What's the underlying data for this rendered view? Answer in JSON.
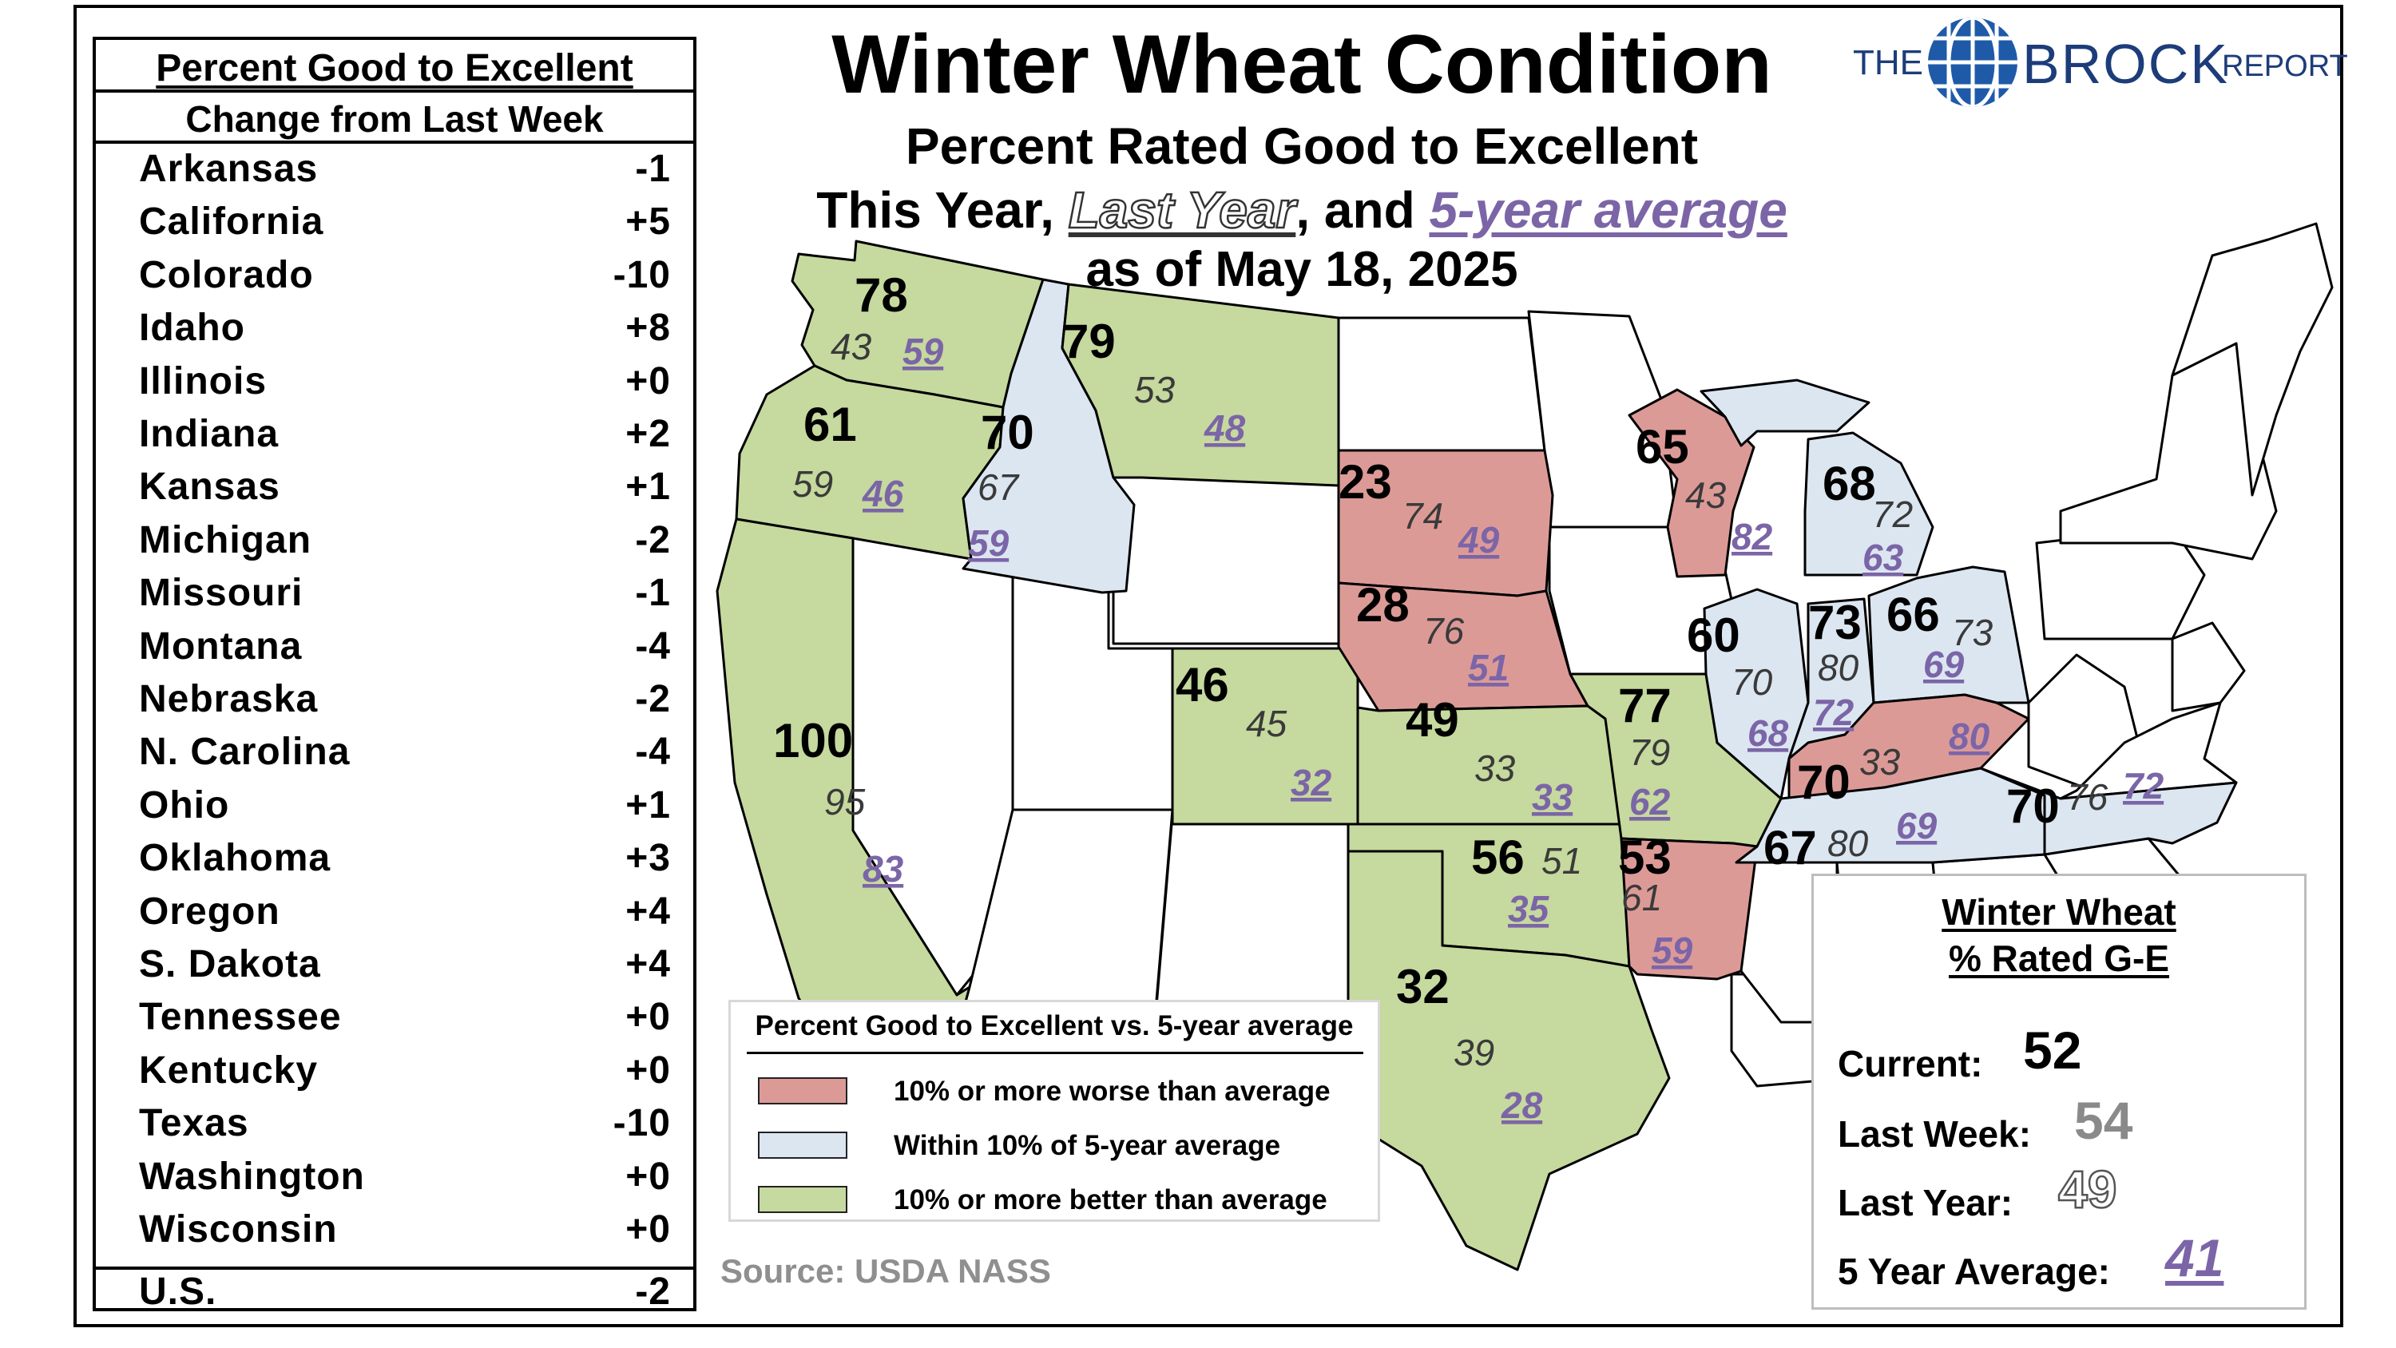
{
  "title": "Winter Wheat Condition",
  "subtitle": "Percent Rated Good to Excellent",
  "subtitle2": {
    "prefix": "This Year, ",
    "last_year": "Last Year",
    "middle": ", and ",
    "five_year": "5-year average"
  },
  "as_of": "as of May 18, 2025",
  "logo": {
    "the": "THE",
    "brock": "BROCK",
    "report": "REPORT"
  },
  "changes": {
    "header1": "Percent Good to Excellent",
    "header2": "Change from Last Week",
    "rows": [
      {
        "state": "Arkansas",
        "change": "-1"
      },
      {
        "state": "California",
        "change": "+5"
      },
      {
        "state": "Colorado",
        "change": "-10"
      },
      {
        "state": "Idaho",
        "change": "+8"
      },
      {
        "state": "Illinois",
        "change": "+0"
      },
      {
        "state": "Indiana",
        "change": "+2"
      },
      {
        "state": "Kansas",
        "change": "+1"
      },
      {
        "state": "Michigan",
        "change": "-2"
      },
      {
        "state": "Missouri",
        "change": "-1"
      },
      {
        "state": "Montana",
        "change": "-4"
      },
      {
        "state": "Nebraska",
        "change": "-2"
      },
      {
        "state": "N. Carolina",
        "change": "-4"
      },
      {
        "state": "Ohio",
        "change": "+1"
      },
      {
        "state": "Oklahoma",
        "change": "+3"
      },
      {
        "state": "Oregon",
        "change": "+4"
      },
      {
        "state": "S. Dakota",
        "change": "+4"
      },
      {
        "state": "Tennessee",
        "change": "+0"
      },
      {
        "state": "Kentucky",
        "change": "+0"
      },
      {
        "state": "Texas",
        "change": "-10"
      },
      {
        "state": "Washington",
        "change": "+0"
      },
      {
        "state": "Wisconsin",
        "change": "+0"
      }
    ],
    "total": {
      "state": "U.S.",
      "change": "-2"
    }
  },
  "colors": {
    "worse": "#dc9a97",
    "within": "#dbe6f1",
    "better": "#c6d99e",
    "none": "#ffffff",
    "five_year_text": "#7b65a7"
  },
  "legend": {
    "title": "Percent Good to Excellent vs. 5-year average",
    "items": [
      {
        "key": "worse",
        "label": "10% or more worse than average"
      },
      {
        "key": "within",
        "label": "Within 10% of 5-year average"
      },
      {
        "key": "better",
        "label": "10% or more better than average"
      }
    ]
  },
  "source": "Source: USDA NASS",
  "summary": {
    "title1": "Winter Wheat",
    "title2": "% Rated G-E",
    "current_label": "Current:",
    "current": "52",
    "last_week_label": "Last Week:",
    "last_week": "54",
    "last_year_label": "Last Year:",
    "last_year": "49",
    "avg_label": "5 Year Average:",
    "avg": "41"
  },
  "states": [
    {
      "id": "WA",
      "category": "better",
      "current": "78",
      "last_year": "43",
      "avg": "59"
    },
    {
      "id": "OR",
      "category": "better",
      "current": "61",
      "last_year": "59",
      "avg": "46"
    },
    {
      "id": "ID",
      "category": "within",
      "current": "70",
      "last_year": "67",
      "avg": "59"
    },
    {
      "id": "MT",
      "category": "better",
      "current": "79",
      "last_year": "53",
      "avg": "48"
    },
    {
      "id": "CA",
      "category": "better",
      "current": "100",
      "last_year": "95",
      "avg": "83"
    },
    {
      "id": "CO",
      "category": "better",
      "current": "46",
      "last_year": "45",
      "avg": "32"
    },
    {
      "id": "SD",
      "category": "worse",
      "current": "23",
      "last_year": "74",
      "avg": "49"
    },
    {
      "id": "NE",
      "category": "worse",
      "current": "28",
      "last_year": "76",
      "avg": "51"
    },
    {
      "id": "KS",
      "category": "better",
      "current": "49",
      "last_year": "33",
      "avg": "33"
    },
    {
      "id": "OK",
      "category": "better",
      "current": "56",
      "last_year": "51",
      "avg": "35"
    },
    {
      "id": "TX",
      "category": "better",
      "current": "32",
      "last_year": "39",
      "avg": "28"
    },
    {
      "id": "MO",
      "category": "better",
      "current": "77",
      "last_year": "79",
      "avg": "62"
    },
    {
      "id": "AR",
      "category": "worse",
      "current": "53",
      "last_year": "61",
      "avg": "59"
    },
    {
      "id": "WI",
      "category": "worse",
      "current": "65",
      "last_year": "43",
      "avg": "82"
    },
    {
      "id": "MI",
      "category": "within",
      "current": "68",
      "last_year": "72",
      "avg": "63"
    },
    {
      "id": "IL",
      "category": "within",
      "current": "60",
      "last_year": "70",
      "avg": "68"
    },
    {
      "id": "IN",
      "category": "within",
      "current": "73",
      "last_year": "80",
      "avg": "72"
    },
    {
      "id": "OH",
      "category": "within",
      "current": "66",
      "last_year": "73",
      "avg": "69"
    },
    {
      "id": "KY",
      "category": "worse",
      "current": "70",
      "last_year": "33",
      "avg": "80"
    },
    {
      "id": "TN",
      "category": "within",
      "current": "67",
      "last_year": "80",
      "avg": "69"
    },
    {
      "id": "NC",
      "category": "within",
      "current": "70",
      "last_year": "76",
      "avg": "72"
    }
  ]
}
